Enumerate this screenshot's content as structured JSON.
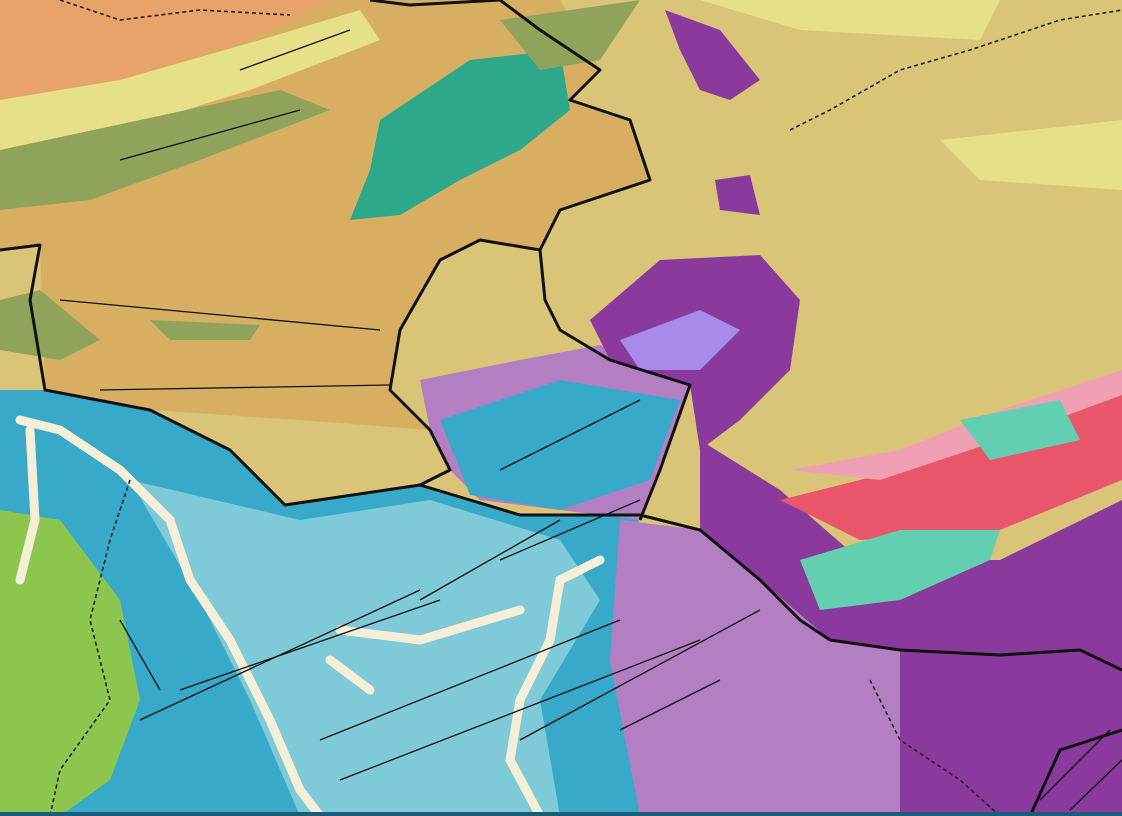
{
  "map": {
    "type": "geological map",
    "colors": {
      "sediment_tan": "#d7ae62",
      "khaki_plain": "#d9c477",
      "orange_band": "#e8a36a",
      "olive_band": "#8fa35a",
      "yellow_band": "#e6e08a",
      "teal_green": "#2ea88a",
      "dark_purple": "#8a3a9c",
      "light_purple": "#b47fc2",
      "violet": "#a88ae8",
      "blue": "#39a9c9",
      "light_blue": "#7ecad8",
      "green": "#8cc64e",
      "red_pink": "#e9566c",
      "pink": "#f0a0b4",
      "turquoise": "#62d0b0",
      "river_cream": "#f6efd8",
      "boundary": "#111111"
    },
    "features": [
      "province-boundary",
      "national-boundary-dashed",
      "fault-lines",
      "rivers"
    ]
  }
}
